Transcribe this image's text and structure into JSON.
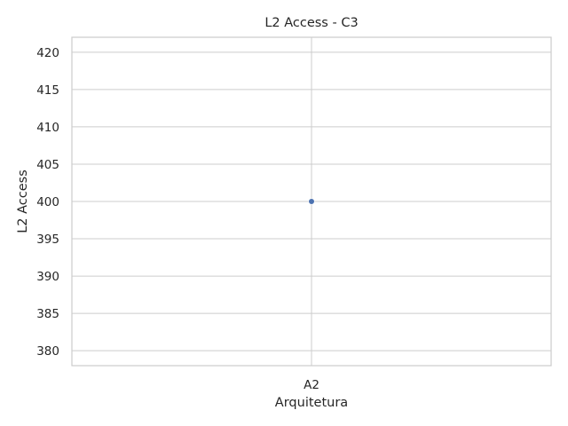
{
  "chart_data": {
    "type": "scatter",
    "title": "L2 Access - C3",
    "xlabel": "Arquitetura",
    "ylabel": "L2 Access",
    "categories": [
      "A2"
    ],
    "series": [
      {
        "values": [
          400
        ]
      }
    ],
    "ylim": [
      378,
      422
    ],
    "yticks": [
      380,
      385,
      390,
      395,
      400,
      405,
      410,
      415,
      420
    ],
    "grid": true,
    "colors": {
      "point": "#4c72b0",
      "grid": "#cccccc",
      "spine": "#cccccc",
      "text": "#262626"
    }
  }
}
